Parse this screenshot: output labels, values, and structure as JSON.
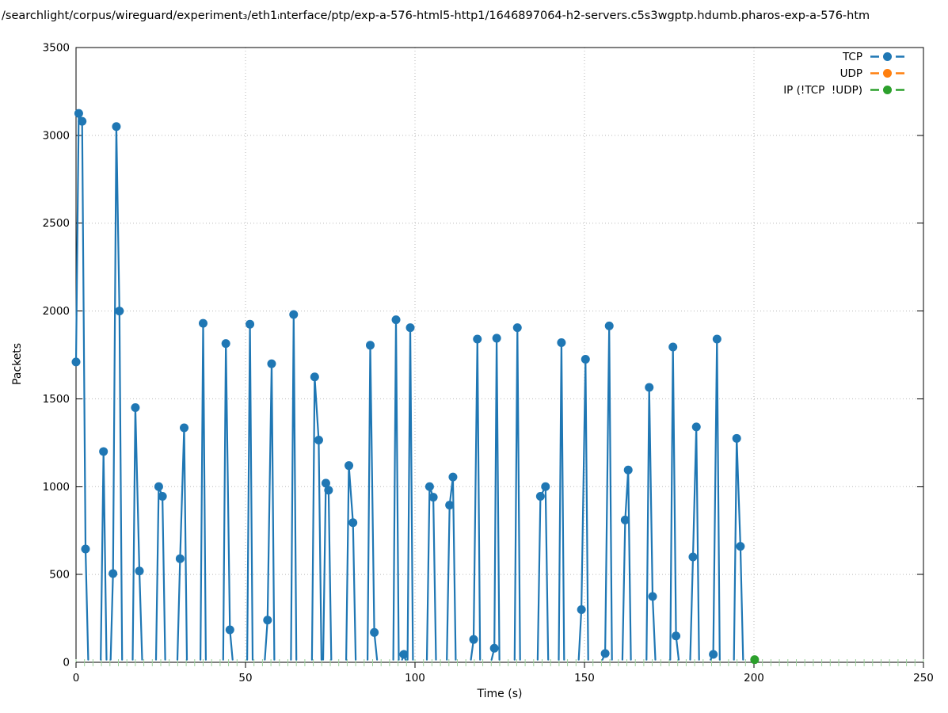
{
  "chart_data": {
    "type": "line",
    "title": "/searchlight/corpus/wireguard/experiment₃/eth1ᵢnterface/ptp/exp-a-576-html5-http1/1646897064-h2-servers.c5s3wgptp.hdumb.pharos-exp-a-576-htm",
    "xlabel": "Time (s)",
    "ylabel": "Packets",
    "xlim": [
      0,
      250
    ],
    "ylim": [
      0,
      3500
    ],
    "xticks": [
      0,
      50,
      100,
      150,
      200,
      250
    ],
    "yticks": [
      0,
      500,
      1000,
      1500,
      2000,
      2500,
      3000,
      3500
    ],
    "minor_xtick_step": 2.5,
    "grid": true,
    "legend_position": "top-right-inside",
    "styles": {
      "grid_color": "#b9b9b9",
      "minor_tick_color": "#9fd49f",
      "axis_color": "#000000",
      "marker_radius": 5.5,
      "line_width": 2.2
    },
    "series": [
      {
        "name": "TCP",
        "color": "#1f77b4",
        "marker": "circle",
        "bursts": [
          [
            [
              0,
              1710,
              1
            ],
            [
              0.8,
              3125,
              1
            ],
            [
              1.8,
              3080,
              1
            ],
            [
              2.8,
              645,
              1
            ],
            [
              3.6,
              15,
              0
            ]
          ],
          [
            [
              7.3,
              15,
              0
            ],
            [
              8.1,
              1200,
              1
            ],
            [
              9.0,
              15,
              0
            ]
          ],
          [
            [
              10.2,
              15,
              0
            ],
            [
              10.9,
              505,
              1
            ],
            [
              11.9,
              3050,
              1
            ],
            [
              12.8,
              2000,
              1
            ],
            [
              13.6,
              15,
              0
            ]
          ],
          [
            [
              16.7,
              15,
              0
            ],
            [
              17.5,
              1450,
              1
            ],
            [
              18.7,
              520,
              1
            ],
            [
              19.5,
              15,
              0
            ]
          ],
          [
            [
              23.6,
              15,
              0
            ],
            [
              24.4,
              1000,
              1
            ],
            [
              25.5,
              945,
              1
            ],
            [
              26.3,
              15,
              0
            ]
          ],
          [
            [
              29.9,
              15,
              0
            ],
            [
              30.7,
              590,
              1
            ],
            [
              31.9,
              1335,
              1
            ],
            [
              32.7,
              15,
              0
            ]
          ],
          [
            [
              36.7,
              15,
              0
            ],
            [
              37.5,
              1930,
              1
            ],
            [
              38.3,
              15,
              0
            ]
          ],
          [
            [
              43.4,
              15,
              0
            ],
            [
              44.2,
              1815,
              1
            ],
            [
              45.4,
              185,
              1
            ],
            [
              46.2,
              15,
              0
            ]
          ],
          [
            [
              50.5,
              15,
              0
            ],
            [
              51.3,
              1925,
              1
            ],
            [
              52.1,
              15,
              0
            ]
          ],
          [
            [
              55.7,
              15,
              0
            ],
            [
              56.5,
              240,
              1
            ],
            [
              57.7,
              1700,
              1
            ],
            [
              58.5,
              15,
              0
            ]
          ],
          [
            [
              63.4,
              15,
              0
            ],
            [
              64.2,
              1980,
              1
            ],
            [
              65.0,
              15,
              0
            ]
          ],
          [
            [
              69.6,
              15,
              0
            ],
            [
              70.4,
              1625,
              1
            ],
            [
              71.6,
              1265,
              1
            ],
            [
              72.4,
              15,
              0
            ]
          ],
          [
            [
              72.9,
              15,
              0
            ],
            [
              73.7,
              1020,
              1
            ],
            [
              74.5,
              980,
              1
            ],
            [
              75.3,
              15,
              0
            ]
          ],
          [
            [
              79.7,
              15,
              0
            ],
            [
              80.5,
              1120,
              1
            ],
            [
              81.7,
              795,
              1
            ],
            [
              82.5,
              15,
              0
            ]
          ],
          [
            [
              86.0,
              15,
              0
            ],
            [
              86.8,
              1805,
              1
            ],
            [
              88.0,
              170,
              1
            ],
            [
              88.8,
              15,
              0
            ]
          ],
          [
            [
              93.6,
              15,
              0
            ],
            [
              94.4,
              1950,
              1
            ],
            [
              95.2,
              15,
              0
            ]
          ],
          [
            [
              96.2,
              15,
              0
            ],
            [
              96.7,
              45,
              1
            ],
            [
              97.2,
              15,
              0
            ]
          ],
          [
            [
              97.8,
              15,
              0
            ],
            [
              98.6,
              1905,
              1
            ],
            [
              99.4,
              15,
              0
            ]
          ],
          [
            [
              103.5,
              15,
              0
            ],
            [
              104.3,
              1000,
              1
            ],
            [
              105.4,
              940,
              1
            ],
            [
              106.2,
              15,
              0
            ]
          ],
          [
            [
              109.4,
              15,
              0
            ],
            [
              110.2,
              895,
              1
            ],
            [
              111.2,
              1055,
              1
            ],
            [
              112.0,
              15,
              0
            ]
          ],
          [
            [
              116.5,
              15,
              0
            ],
            [
              117.3,
              130,
              1
            ],
            [
              118.4,
              1840,
              1
            ],
            [
              119.2,
              15,
              0
            ]
          ],
          [
            [
              122.6,
              15,
              0
            ],
            [
              123.4,
              80,
              1
            ],
            [
              124.1,
              1845,
              1
            ],
            [
              124.9,
              15,
              0
            ]
          ],
          [
            [
              129.4,
              15,
              0
            ],
            [
              130.2,
              1905,
              1
            ],
            [
              131.0,
              15,
              0
            ]
          ],
          [
            [
              136.2,
              15,
              0
            ],
            [
              137.0,
              945,
              1
            ],
            [
              138.5,
              1000,
              1
            ],
            [
              139.3,
              15,
              0
            ]
          ],
          [
            [
              142.4,
              15,
              0
            ],
            [
              143.2,
              1820,
              1
            ],
            [
              144.0,
              15,
              0
            ]
          ],
          [
            [
              148.3,
              15,
              0
            ],
            [
              149.1,
              300,
              1
            ],
            [
              150.3,
              1725,
              1
            ],
            [
              151.1,
              15,
              0
            ]
          ],
          [
            [
              155.3,
              15,
              0
            ],
            [
              156.1,
              50,
              1
            ],
            [
              157.3,
              1915,
              1
            ],
            [
              158.1,
              15,
              0
            ]
          ],
          [
            [
              161.2,
              15,
              0
            ],
            [
              162.0,
              810,
              1
            ],
            [
              162.9,
              1095,
              1
            ],
            [
              163.7,
              15,
              0
            ]
          ],
          [
            [
              168.3,
              15,
              0
            ],
            [
              169.1,
              1565,
              1
            ],
            [
              170.1,
              375,
              1
            ],
            [
              170.9,
              15,
              0
            ]
          ],
          [
            [
              175.3,
              15,
              0
            ],
            [
              176.1,
              1795,
              1
            ],
            [
              177.0,
              150,
              1
            ],
            [
              177.8,
              15,
              0
            ]
          ],
          [
            [
              181.2,
              15,
              0
            ],
            [
              182.0,
              600,
              1
            ],
            [
              183.0,
              1340,
              1
            ],
            [
              183.8,
              15,
              0
            ]
          ],
          [
            [
              187.2,
              15,
              0
            ],
            [
              188.0,
              45,
              1
            ],
            [
              189.1,
              1840,
              1
            ],
            [
              189.9,
              15,
              0
            ]
          ],
          [
            [
              194.1,
              15,
              0
            ],
            [
              194.9,
              1275,
              1
            ],
            [
              196.0,
              660,
              1
            ],
            [
              196.8,
              15,
              0
            ]
          ]
        ]
      },
      {
        "name": "UDP",
        "color": "#ff7f0e",
        "marker": "circle",
        "bursts": []
      },
      {
        "name": "IP (!TCP  !UDP)",
        "color": "#2ca02c",
        "marker": "circle",
        "bursts": [
          [
            [
              200.2,
              15,
              1
            ]
          ]
        ]
      }
    ]
  }
}
